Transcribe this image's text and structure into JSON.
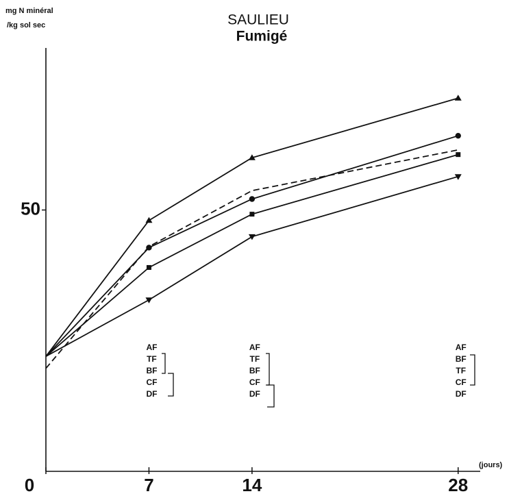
{
  "chart_data": {
    "type": "line",
    "title": "SAULIEU",
    "subtitle": "Fumigé",
    "ylabel": [
      "mg N minéral",
      "/kg sol sec"
    ],
    "xlabel": "(jours)",
    "x": [
      0,
      7,
      14,
      28
    ],
    "xlim": [
      0,
      29.5
    ],
    "xticks": [
      0,
      7,
      14,
      28
    ],
    "ylim": [
      0,
      81
    ],
    "yticks": [
      50
    ],
    "grid": false,
    "series": [
      {
        "color": "#111111",
        "marker": "triangle",
        "dashed": false,
        "values": [
          22.0,
          48.0,
          60.0,
          71.4
        ]
      },
      {
        "color": "#111111",
        "marker": "circle",
        "dashed": false,
        "values": [
          22.0,
          42.8,
          52.1,
          64.2
        ]
      },
      {
        "color": "#111111",
        "marker": "none",
        "dashed": true,
        "values": [
          19.7,
          43.0,
          53.7,
          61.5
        ]
      },
      {
        "color": "#111111",
        "marker": "square",
        "dashed": false,
        "values": [
          22.0,
          39.0,
          49.2,
          60.6
        ]
      },
      {
        "color": "#111111",
        "marker": "triangle-down",
        "dashed": false,
        "values": [
          22.0,
          32.8,
          44.9,
          56.4
        ]
      }
    ],
    "annotations": [
      {
        "x": 7,
        "letters": [
          "AF",
          "TF",
          "BF",
          "CF",
          "DF"
        ]
      },
      {
        "x": 14,
        "letters": [
          "AF",
          "TF",
          "BF",
          "CF",
          "DF"
        ]
      },
      {
        "x": 28,
        "letters": [
          "AF",
          "BF",
          "TF",
          "CF",
          "DF"
        ]
      }
    ]
  }
}
